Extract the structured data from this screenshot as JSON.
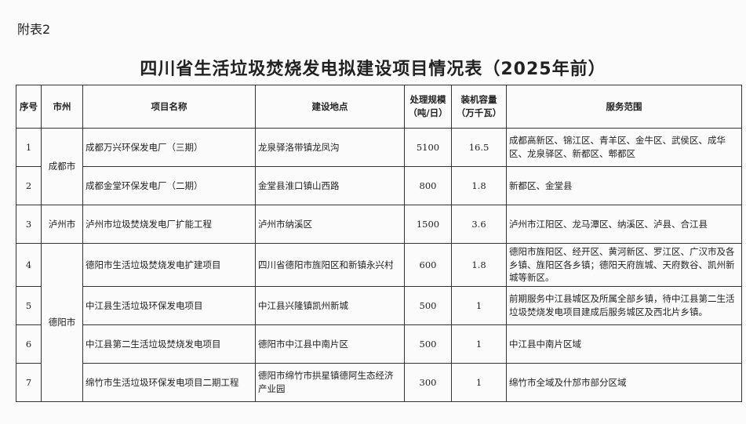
{
  "annex_label": "附表2",
  "title": "四川省生活垃圾焚烧发电拟建设项目情况表（2025年前）",
  "headers": {
    "no": "序号",
    "city": "市州",
    "project": "项目名称",
    "location": "建设地点",
    "scale": "处理规模（吨/日）",
    "capacity": "装机容量（万千瓦）",
    "service": "服务范围"
  },
  "cities": [
    "成都市",
    "泸州市",
    "德阳市"
  ],
  "rows": [
    {
      "no": "1",
      "project": "成都万兴环保发电厂（三期）",
      "location": "龙泉驿洛带镇龙凤沟",
      "scale": "5100",
      "capacity": "16.5",
      "service": "成都高新区、锦江区、青羊区、金牛区、武侯区、成华区、龙泉驿区、新都区、郫都区"
    },
    {
      "no": "2",
      "project": "成都金堂环保发电厂（二期）",
      "location": "金堂县淮口镇山西路",
      "scale": "800",
      "capacity": "1.8",
      "service": "新都区、金堂县"
    },
    {
      "no": "3",
      "project": "泸州市垃圾焚烧发电厂扩能工程",
      "location": "泸州市纳溪区",
      "scale": "1500",
      "capacity": "3.6",
      "service": "泸州市江阳区、龙马潭区、纳溪区、泸县、合江县"
    },
    {
      "no": "4",
      "project": "德阳市生活垃圾焚烧发电扩建项目",
      "location": "四川省德阳市旌阳区和新镇永兴村",
      "scale": "600",
      "capacity": "1.8",
      "service": "德阳市旌阳区、经开区、黄河新区、罗江区、广汉市及各乡镇、旌阳区各乡镇；德阳天府旌城、天府数谷、凯州新城等新区。"
    },
    {
      "no": "5",
      "project": "中江县生活垃圾环保发电项目",
      "location": "中江县兴隆镇凯州新城",
      "scale": "500",
      "capacity": "1",
      "service": "前期服务中江县城区及所属全部乡镇，待中江县第二生活垃圾焚烧发电项目建成后服务城区及西北片乡镇。"
    },
    {
      "no": "6",
      "project": "中江县第二生活垃圾焚烧发电项目",
      "location": "德阳市中江县中南片区",
      "scale": "500",
      "capacity": "1",
      "service": "中江县中南片区域"
    },
    {
      "no": "7",
      "project": "绵竹市生活垃圾环保发电项目二期工程",
      "location": "德阳市绵竹市拱星镇德阿生态经济产业园",
      "scale": "300",
      "capacity": "1",
      "service": "绵竹市全域及什邡市部分区域"
    }
  ]
}
